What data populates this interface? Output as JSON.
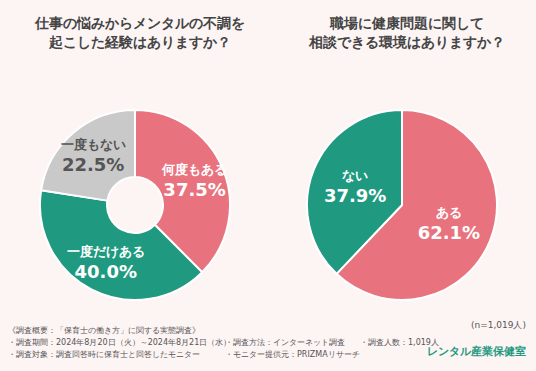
{
  "chart_data": [
    {
      "type": "donut",
      "title": "仕事の悩みからメンタルの不調を\n起こした経験はありますか？",
      "categories": [
        "何度もある",
        "一度だけある",
        "一度もない"
      ],
      "values": [
        37.5,
        40.0,
        22.5
      ],
      "value_labels": [
        "37.5%",
        "40.0%",
        "22.5%"
      ],
      "colors": [
        "#e8737f",
        "#1f9a80",
        "#c9c9c9"
      ],
      "data_labels": true
    },
    {
      "type": "pie",
      "title": "職場に健康問題に関して\n相談できる環境はありますか？",
      "categories": [
        "ある",
        "ない"
      ],
      "values": [
        62.1,
        37.9
      ],
      "value_labels": [
        "62.1%",
        "37.9%"
      ],
      "colors": [
        "#e8737f",
        "#1f9a80"
      ],
      "data_labels": true,
      "annotation": "(n=1,019人)"
    }
  ],
  "footer": {
    "heading": "《調査概要：「保育士の働き方」に関する実態調査》",
    "lines": [
      "・調査期間：2024年8月20日（火）～2024年8月21日（水）",
      "・調査対象：調査回答時に保育士と回答したモニター",
      "・調査方法：インターネット調査",
      "・モニター提供元：PRIZMAリサーチ",
      "・調査人数：1,019人"
    ],
    "logo": "レンタル産業保健室"
  }
}
